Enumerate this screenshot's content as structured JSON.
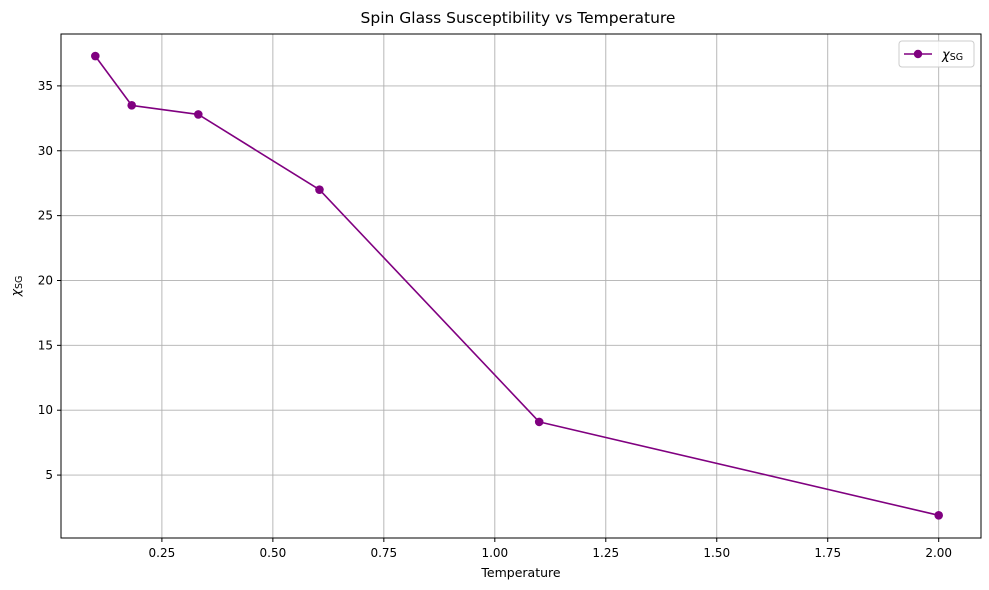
{
  "chart_data": {
    "type": "line",
    "title": "Spin Glass Susceptibility vs Temperature",
    "xlabel": "Temperature",
    "ylabel_main": "χ",
    "ylabel_sub": "SG",
    "xlim": [
      0.0227,
      2.0953
    ],
    "ylim": [
      0.15,
      39.0
    ],
    "xticks": [
      0.25,
      0.5,
      0.75,
      1.0,
      1.25,
      1.5,
      1.75,
      2.0
    ],
    "xtick_labels": [
      "0.25",
      "0.50",
      "0.75",
      "1.00",
      "1.25",
      "1.50",
      "1.75",
      "2.00"
    ],
    "yticks": [
      5,
      10,
      15,
      20,
      25,
      30,
      35
    ],
    "ytick_labels": [
      "5",
      "10",
      "15",
      "20",
      "25",
      "30",
      "35"
    ],
    "grid": true,
    "legend_placement": "top-right",
    "series": [
      {
        "name_main": "χ",
        "name_sub": "SG",
        "color": "#800080",
        "marker": "circle",
        "x": [
          0.1,
          0.182,
          0.332,
          0.605,
          1.1,
          2.0
        ],
        "y": [
          37.3,
          33.5,
          32.8,
          27.0,
          9.1,
          1.9
        ]
      }
    ]
  },
  "colors": {
    "grid": "#b0b0b0",
    "axes": "#000000",
    "series": "#800080"
  }
}
